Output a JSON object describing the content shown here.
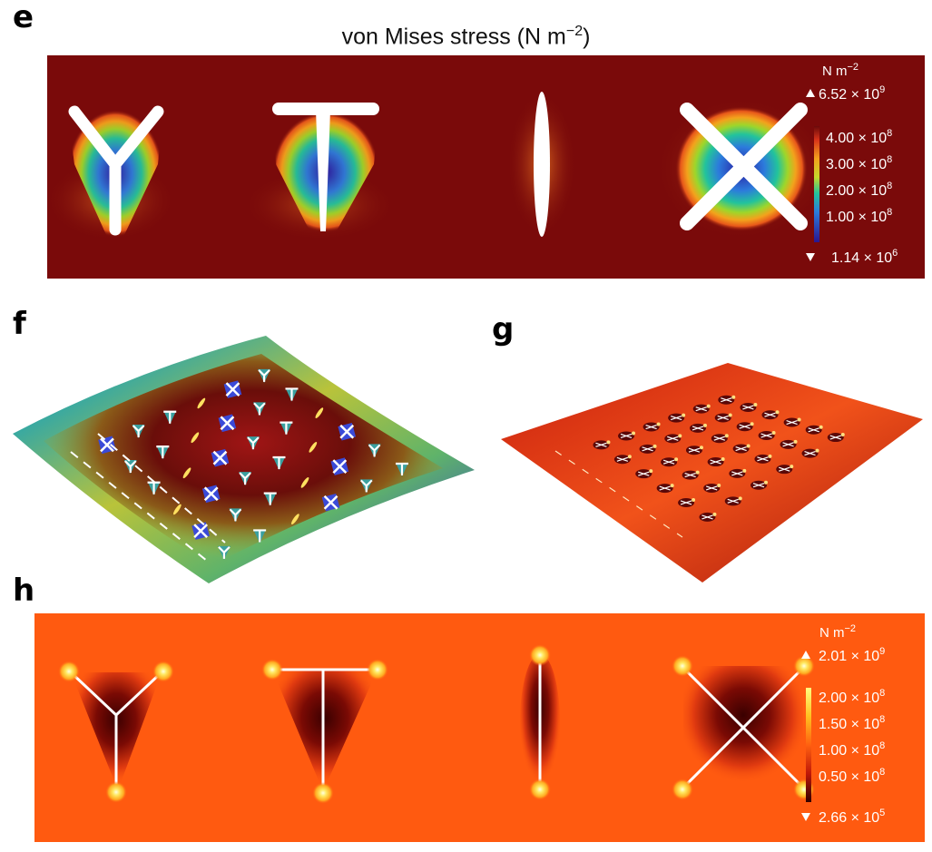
{
  "panel_e": {
    "letter": "e",
    "title": "von Mises stress (N m",
    "title_exp": "−2",
    "title_close": ")",
    "colorbar": {
      "unit": "N m",
      "unit_exp": "−2",
      "max": "6.52 × 10",
      "max_exp": "9",
      "ticks": [
        {
          "mant": "4.00 × 10",
          "exp": "8"
        },
        {
          "mant": "3.00 × 10",
          "exp": "8"
        },
        {
          "mant": "2.00 × 10",
          "exp": "8"
        },
        {
          "mant": "1.00 × 10",
          "exp": "8"
        }
      ],
      "min": "1.14 × 10",
      "min_exp": "6"
    }
  },
  "panel_f": {
    "letter": "f"
  },
  "panel_g": {
    "letter": "g"
  },
  "panel_h": {
    "letter": "h",
    "colorbar": {
      "unit": "N m",
      "unit_exp": "−2",
      "max": "2.01 × 10",
      "max_exp": "9",
      "ticks": [
        {
          "mant": "2.00 × 10",
          "exp": "8"
        },
        {
          "mant": "1.50 × 10",
          "exp": "8"
        },
        {
          "mant": "1.00 × 10",
          "exp": "8"
        },
        {
          "mant": "0.50 × 10",
          "exp": "8"
        }
      ],
      "min": "2.66 × 10",
      "min_exp": "5"
    }
  },
  "colors": {
    "e_background": "#7a0a0a",
    "h_background": "#ff5a10",
    "rib": "#ffffff"
  }
}
